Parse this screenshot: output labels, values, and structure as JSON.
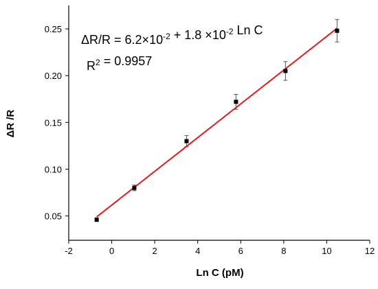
{
  "chart_data": {
    "type": "scatter",
    "x_label": "Ln C  (pM)",
    "y_label": "ΔR /R",
    "x": [
      -0.7,
      1.05,
      3.48,
      5.78,
      8.08,
      10.48
    ],
    "values": [
      0.046,
      0.08,
      0.13,
      0.172,
      0.205,
      0.248
    ],
    "errors": [
      0.002,
      0.003,
      0.006,
      0.008,
      0.01,
      0.012
    ],
    "marker_color": "#000000",
    "fit": {
      "x": [
        -0.7,
        10.5
      ],
      "values": [
        0.049,
        0.251
      ],
      "color": "#e31a1c"
    },
    "equation": [
      {
        "text": "ΔR/R = 6.2×10",
        "sup": "-2"
      },
      {
        "text": " + 1.8 ×10",
        "sup": "-2"
      },
      {
        "text": " Ln C"
      }
    ],
    "r_squared": [
      {
        "text": "R",
        "sup": "2"
      },
      {
        "text": " = 0.9957"
      }
    ],
    "xlim": [
      -2,
      12
    ],
    "xticks": [
      -2,
      0,
      2,
      4,
      6,
      8,
      10,
      12
    ],
    "ylim": [
      0.024,
      0.275
    ],
    "yticks": [
      0.05,
      {
        "value": 0.1,
        "label": "0.10"
      },
      0.15,
      {
        "value": 0.2,
        "label": "0.20"
      },
      0.25
    ]
  }
}
